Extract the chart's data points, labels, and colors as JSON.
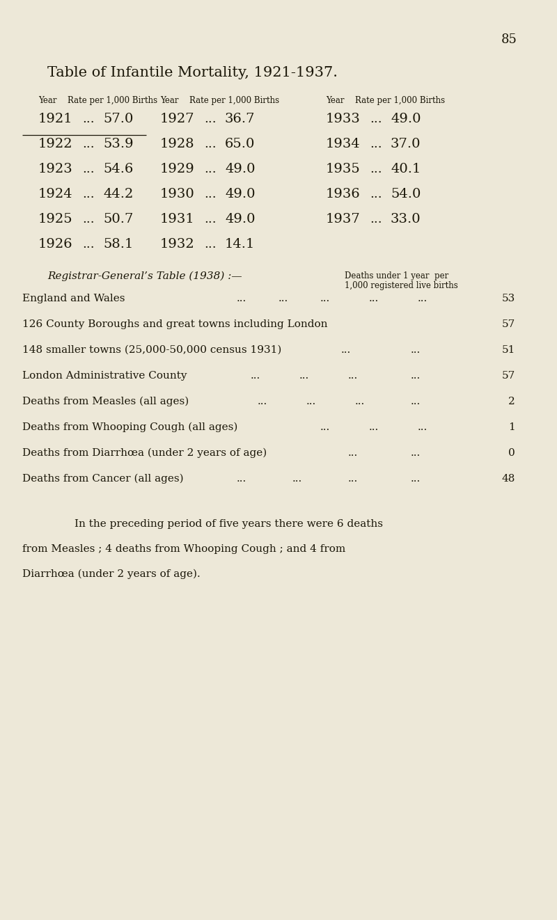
{
  "page_number": "85",
  "bg_color": "#ede8d8",
  "text_color": "#1a1608",
  "title": "Table of Infantile Mortality, 1921-1937.",
  "mortality_table": [
    [
      "1921",
      "...",
      "57.0",
      "1927",
      "...",
      "36.7",
      "1933",
      "...",
      "49.0"
    ],
    [
      "1922",
      "...",
      "53.9",
      "1928",
      "...",
      "65.0",
      "1934",
      "...",
      "37.0"
    ],
    [
      "1923",
      "...",
      "54.6",
      "1929",
      "...",
      "49.0",
      "1935",
      "...",
      "40.1"
    ],
    [
      "1924",
      "...",
      "44.2",
      "1930",
      "...",
      "49.0",
      "1936",
      "...",
      "54.0"
    ],
    [
      "1925",
      "...",
      "50.7",
      "1931",
      "...",
      "49.0",
      "1937",
      "...",
      "33.0"
    ],
    [
      "1926",
      "...",
      "58.1",
      "1932",
      "...",
      "14.1",
      "",
      "",
      ""
    ]
  ],
  "registrar_label": "Registrar-General’s Table (1938) :—",
  "registrar_col_header_line1": "Deaths under 1 year  per",
  "registrar_col_header_line2": "1,000 registered live births",
  "registrar_rows": [
    {
      "label": "England and Wales",
      "dots": [
        "...",
        "...",
        "...",
        "...",
        "..."
      ],
      "value": "53"
    },
    {
      "label": "126 County Boroughs and great towns including London",
      "dots": [],
      "value": "57"
    },
    {
      "label": "148 smaller towns (25,000-50,000 census 1931)",
      "dots": [
        "...",
        "..."
      ],
      "value": "51"
    },
    {
      "label": "London Administrative County",
      "dots": [
        "...",
        "...",
        "...",
        "..."
      ],
      "value": "57"
    },
    {
      "label": "Deaths from Measles (all ages)",
      "dots": [
        "...",
        "...",
        "...",
        "..."
      ],
      "value": "2"
    },
    {
      "label": "Deaths from Whooping Cough (all ages)",
      "dots": [
        "...",
        "...",
        "..."
      ],
      "value": "1"
    },
    {
      "label": "Deaths from Diarrhœa (under 2 years of age)",
      "dots": [
        "...",
        "..."
      ],
      "value": "0"
    },
    {
      "label": "Deaths from Cancer (all ages)",
      "dots": [
        "...",
        "...",
        "...",
        "..."
      ],
      "value": "48"
    }
  ],
  "footnote_indent": "        ",
  "footnote_line1": "        In the preceding period of five years there were 6 deaths",
  "footnote_line2": "from Measles ; 4 deaths from Whooping Cough ; and 4 from",
  "footnote_line3": "Diarrhœa (under 2 years of age).",
  "dash_row": 1,
  "font_family": "serif"
}
